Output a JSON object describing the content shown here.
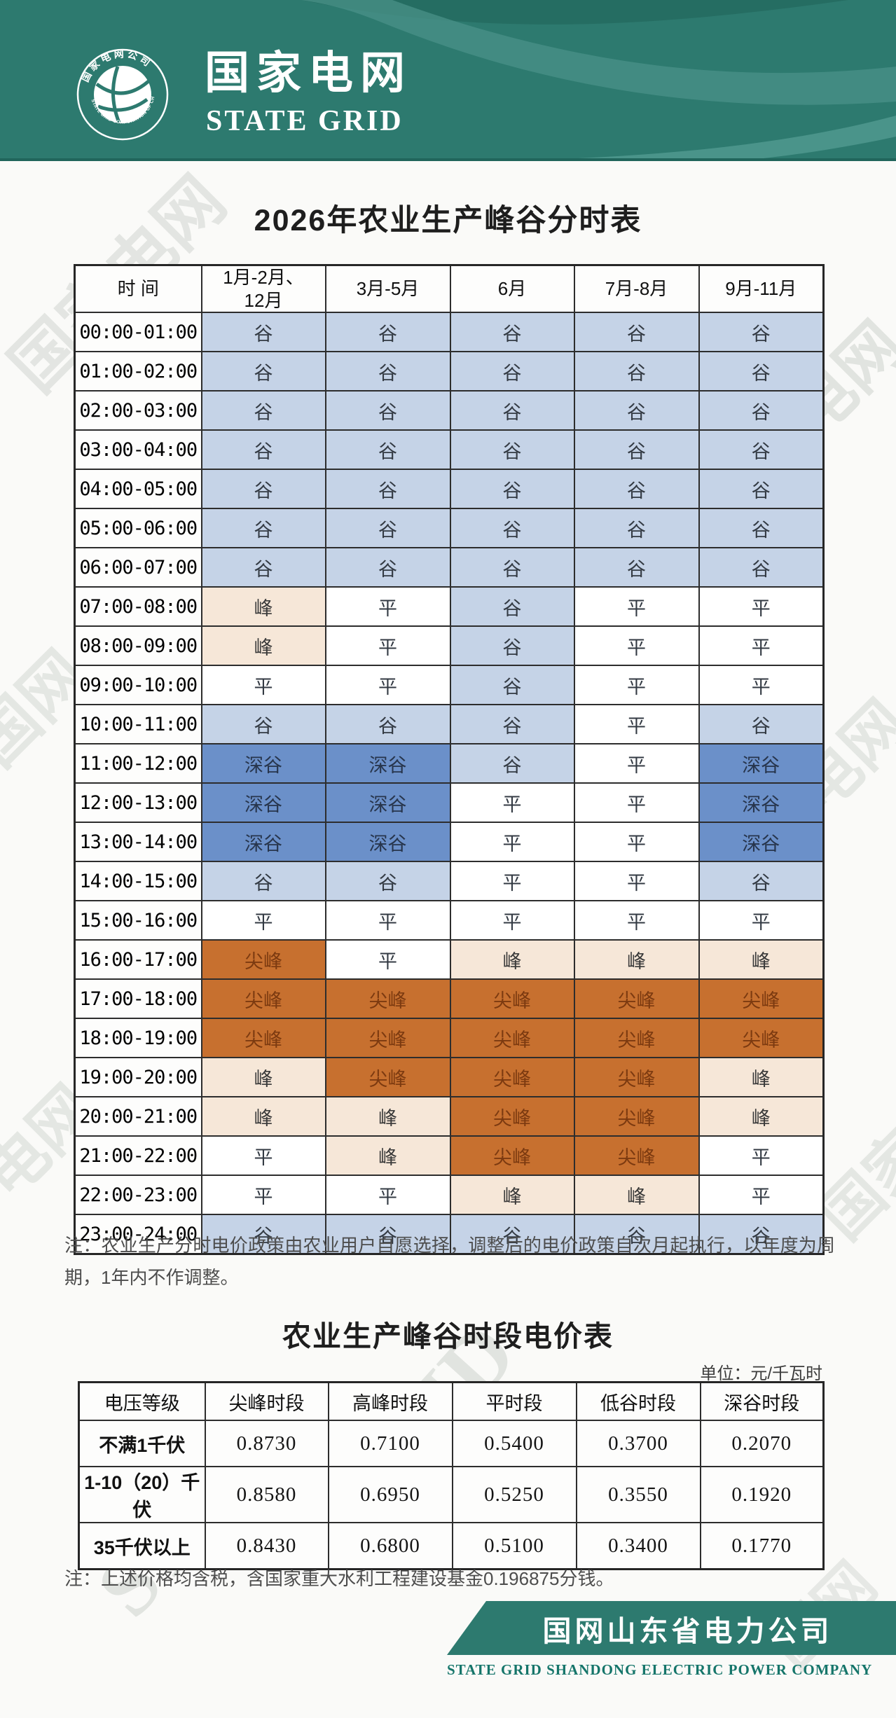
{
  "header": {
    "logo_cn": "国家电网",
    "logo_en": "STATE GRID",
    "emblem_top": "国家电网公司",
    "emblem_bottom": "STATE GRID CORPORATION OF CHINA"
  },
  "schedule_table": {
    "title": "2026年农业生产峰谷分时表",
    "columns": [
      "时 间",
      "1月-2月、\n12月",
      "3月-5月",
      "6月",
      "7月-8月",
      "9月-11月"
    ],
    "rows": [
      {
        "time": "00:00-01:00",
        "values": [
          "谷",
          "谷",
          "谷",
          "谷",
          "谷"
        ]
      },
      {
        "time": "01:00-02:00",
        "values": [
          "谷",
          "谷",
          "谷",
          "谷",
          "谷"
        ]
      },
      {
        "time": "02:00-03:00",
        "values": [
          "谷",
          "谷",
          "谷",
          "谷",
          "谷"
        ]
      },
      {
        "time": "03:00-04:00",
        "values": [
          "谷",
          "谷",
          "谷",
          "谷",
          "谷"
        ]
      },
      {
        "time": "04:00-05:00",
        "values": [
          "谷",
          "谷",
          "谷",
          "谷",
          "谷"
        ]
      },
      {
        "time": "05:00-06:00",
        "values": [
          "谷",
          "谷",
          "谷",
          "谷",
          "谷"
        ]
      },
      {
        "time": "06:00-07:00",
        "values": [
          "谷",
          "谷",
          "谷",
          "谷",
          "谷"
        ]
      },
      {
        "time": "07:00-08:00",
        "values": [
          "峰",
          "平",
          "谷",
          "平",
          "平"
        ]
      },
      {
        "time": "08:00-09:00",
        "values": [
          "峰",
          "平",
          "谷",
          "平",
          "平"
        ]
      },
      {
        "time": "09:00-10:00",
        "values": [
          "平",
          "平",
          "谷",
          "平",
          "平"
        ]
      },
      {
        "time": "10:00-11:00",
        "values": [
          "谷",
          "谷",
          "谷",
          "平",
          "谷"
        ]
      },
      {
        "time": "11:00-12:00",
        "values": [
          "深谷",
          "深谷",
          "谷",
          "平",
          "深谷"
        ]
      },
      {
        "time": "12:00-13:00",
        "values": [
          "深谷",
          "深谷",
          "平",
          "平",
          "深谷"
        ]
      },
      {
        "time": "13:00-14:00",
        "values": [
          "深谷",
          "深谷",
          "平",
          "平",
          "深谷"
        ]
      },
      {
        "time": "14:00-15:00",
        "values": [
          "谷",
          "谷",
          "平",
          "平",
          "谷"
        ]
      },
      {
        "time": "15:00-16:00",
        "values": [
          "平",
          "平",
          "平",
          "平",
          "平"
        ]
      },
      {
        "time": "16:00-17:00",
        "values": [
          "尖峰",
          "平",
          "峰",
          "峰",
          "峰"
        ]
      },
      {
        "time": "17:00-18:00",
        "values": [
          "尖峰",
          "尖峰",
          "尖峰",
          "尖峰",
          "尖峰"
        ]
      },
      {
        "time": "18:00-19:00",
        "values": [
          "尖峰",
          "尖峰",
          "尖峰",
          "尖峰",
          "尖峰"
        ]
      },
      {
        "time": "19:00-20:00",
        "values": [
          "峰",
          "尖峰",
          "尖峰",
          "尖峰",
          "峰"
        ]
      },
      {
        "time": "20:00-21:00",
        "values": [
          "峰",
          "峰",
          "尖峰",
          "尖峰",
          "峰"
        ]
      },
      {
        "time": "21:00-22:00",
        "values": [
          "平",
          "峰",
          "尖峰",
          "尖峰",
          "平"
        ]
      },
      {
        "time": "22:00-23:00",
        "values": [
          "平",
          "平",
          "峰",
          "峰",
          "平"
        ]
      },
      {
        "time": "23:00-24:00",
        "values": [
          "谷",
          "谷",
          "谷",
          "谷",
          "谷"
        ]
      }
    ]
  },
  "note1": "注：农业生产分时电价政策由农业用户自愿选择，调整后的电价政策自次月起执行，以年度为周期，1年内不作调整。",
  "price_table": {
    "title": "农业生产峰谷时段电价表",
    "unit": "单位：元/千瓦时",
    "columns": [
      "电压等级",
      "尖峰时段",
      "高峰时段",
      "平时段",
      "低谷时段",
      "深谷时段"
    ],
    "rows": [
      {
        "label": "不满1千伏",
        "values": [
          "0.8730",
          "0.7100",
          "0.5400",
          "0.3700",
          "0.2070"
        ]
      },
      {
        "label": "1-10（20）千伏",
        "values": [
          "0.8580",
          "0.6950",
          "0.5250",
          "0.3550",
          "0.1920"
        ]
      },
      {
        "label": "35千伏以上",
        "values": [
          "0.8430",
          "0.6800",
          "0.5100",
          "0.3400",
          "0.1770"
        ]
      }
    ]
  },
  "note2": "注：上述价格均含税，含国家重大水利工程建设基金0.196875分钱。",
  "footer": {
    "company_cn": "国网山东省电力公司",
    "company_en": "STATE GRID SHANDONG ELECTRIC POWER COMPANY"
  },
  "watermarks": {
    "w_cn_full": "国家电网",
    "w_cn_short": "电网",
    "w_cn_guo": "国网",
    "w_en_state": "STATE",
    "w_en_grid": "GRID",
    "w_en_full": "STATE GRID"
  },
  "colors": {
    "brand_teal": "#2d7a6f",
    "valley": "#c5d3e7",
    "deep_valley": "#6b90c9",
    "flat": "#ffffff",
    "peak": "#f6e7d8",
    "sharp_peak": "#c7702f",
    "sharp_peak_text": "#7c3a10",
    "table_border": "#2d2d2d"
  }
}
